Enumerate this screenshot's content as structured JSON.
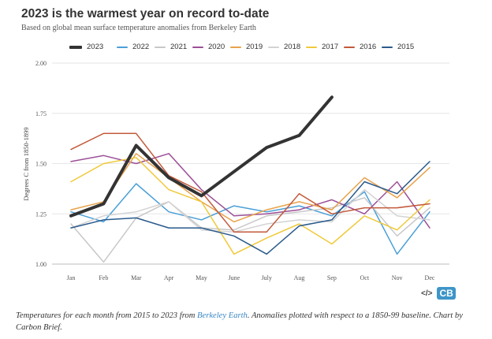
{
  "chart_data": {
    "type": "line",
    "title": "2023 is the warmest year on record to-date",
    "subtitle": "Based on global mean surface temperature anomalies from Berkeley Earth",
    "ylabel": "Degrees C from 1850-1899",
    "xlabel": "",
    "ylim": [
      1.0,
      2.0
    ],
    "yticks": [
      "1.00",
      "1.25",
      "1.50",
      "1.75",
      "2.00"
    ],
    "grid": true,
    "legend_position": "top",
    "categories": [
      "Jan",
      "Feb",
      "Mar",
      "Apr",
      "May",
      "June",
      "July",
      "Aug",
      "Sep",
      "Oct",
      "Nov",
      "Dec"
    ],
    "series": [
      {
        "name": "2023",
        "color": "#333333",
        "width": 4,
        "values": [
          1.24,
          1.3,
          1.59,
          1.43,
          1.34,
          1.46,
          1.58,
          1.64,
          1.83,
          null,
          null,
          null
        ]
      },
      {
        "name": "2022",
        "color": "#4a9fd8",
        "width": 1.5,
        "values": [
          1.26,
          1.21,
          1.4,
          1.26,
          1.22,
          1.29,
          1.26,
          1.29,
          1.24,
          1.36,
          1.05,
          1.26
        ]
      },
      {
        "name": "2021",
        "color": "#c8c8c8",
        "width": 1.5,
        "values": [
          1.2,
          1.01,
          1.23,
          1.31,
          1.18,
          1.17,
          1.24,
          1.26,
          1.28,
          1.33,
          1.14,
          1.28
        ]
      },
      {
        "name": "2020",
        "color": "#9b4f96",
        "width": 1.5,
        "values": [
          1.51,
          1.54,
          1.5,
          1.55,
          1.37,
          1.24,
          1.25,
          1.27,
          1.32,
          1.25,
          1.41,
          1.18
        ]
      },
      {
        "name": "2019",
        "color": "#e8a24a",
        "width": 1.5,
        "values": [
          1.27,
          1.31,
          1.55,
          1.43,
          1.31,
          1.21,
          1.27,
          1.31,
          1.27,
          1.43,
          1.33,
          1.48
        ]
      },
      {
        "name": "2018",
        "color": "#d3d3d3",
        "width": 1.5,
        "values": [
          1.18,
          1.24,
          1.26,
          1.31,
          1.17,
          1.16,
          1.2,
          1.22,
          1.21,
          1.37,
          1.24,
          1.22
        ]
      },
      {
        "name": "2017",
        "color": "#f0c93a",
        "width": 1.5,
        "values": [
          1.41,
          1.5,
          1.53,
          1.37,
          1.31,
          1.05,
          1.13,
          1.2,
          1.1,
          1.24,
          1.17,
          1.32
        ]
      },
      {
        "name": "2016",
        "color": "#c2593a",
        "width": 1.5,
        "values": [
          1.57,
          1.65,
          1.65,
          1.44,
          1.36,
          1.16,
          1.16,
          1.35,
          1.25,
          1.28,
          1.28,
          1.3
        ]
      },
      {
        "name": "2015",
        "color": "#2a5a8c",
        "width": 1.5,
        "values": [
          1.18,
          1.22,
          1.23,
          1.18,
          1.18,
          1.14,
          1.05,
          1.19,
          1.22,
          1.41,
          1.35,
          1.51
        ]
      }
    ]
  },
  "caption": {
    "before": "Temperatures for each month from 2015 to 2023 from ",
    "link": "Berkeley Earth",
    "after": ". Anomalies plotted with respect to a 1850-99 baseline. Chart by Carbon Brief."
  },
  "logo": {
    "code": "</>",
    "brand": "CB"
  }
}
